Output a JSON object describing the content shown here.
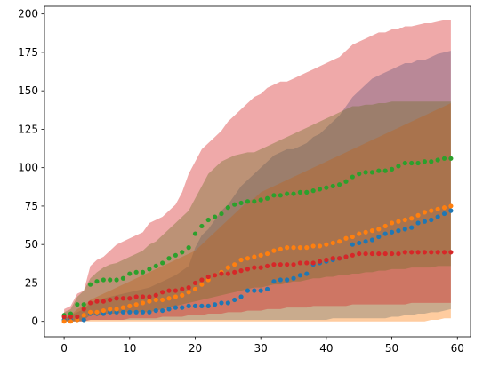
{
  "chart_data": {
    "type": "scatter",
    "title": "",
    "xlabel": "",
    "ylabel": "",
    "xlim": [
      -3,
      62
    ],
    "ylim": [
      -10,
      205
    ],
    "xticks": [
      0,
      10,
      20,
      30,
      40,
      50,
      60
    ],
    "yticks": [
      0,
      25,
      50,
      75,
      100,
      125,
      150,
      175,
      200
    ],
    "x": [
      0,
      1,
      2,
      3,
      4,
      5,
      6,
      7,
      8,
      9,
      10,
      11,
      12,
      13,
      14,
      15,
      16,
      17,
      18,
      19,
      20,
      21,
      22,
      23,
      24,
      25,
      26,
      27,
      28,
      29,
      30,
      31,
      32,
      33,
      34,
      35,
      36,
      37,
      38,
      39,
      40,
      41,
      42,
      43,
      44,
      45,
      46,
      47,
      48,
      49,
      50,
      51,
      52,
      53,
      54,
      55,
      56,
      57,
      58,
      59
    ],
    "grid": false,
    "legend": "none",
    "series": [
      {
        "color": "#1f77b4",
        "values": [
          1,
          1,
          1,
          1,
          5,
          5,
          5,
          6,
          6,
          6,
          6,
          6,
          6,
          6,
          7,
          7,
          8,
          9,
          9,
          10,
          10,
          10,
          10,
          11,
          12,
          12,
          14,
          16,
          20,
          20,
          20,
          21,
          26,
          27,
          27,
          28,
          30,
          31,
          37,
          38,
          39,
          40,
          41,
          42,
          50,
          51,
          52,
          53,
          55,
          57,
          58,
          59,
          60,
          61,
          64,
          65,
          66,
          68,
          70,
          72
        ],
        "band_low": [
          0,
          0,
          0,
          0,
          1,
          1,
          1,
          1,
          1,
          1,
          1,
          1,
          1,
          1,
          1,
          1,
          1,
          1,
          1,
          1,
          1,
          1,
          1,
          1,
          1,
          1,
          1,
          1,
          1,
          1,
          1,
          1,
          1,
          1,
          1,
          1,
          1,
          1,
          1,
          1,
          1,
          2,
          2,
          2,
          2,
          2,
          2,
          2,
          2,
          2,
          3,
          3,
          4,
          4,
          5,
          5,
          6,
          6,
          7,
          8
        ],
        "band_high": [
          2,
          4,
          6,
          8,
          12,
          14,
          15,
          16,
          17,
          18,
          19,
          20,
          21,
          22,
          24,
          26,
          28,
          30,
          33,
          36,
          48,
          56,
          60,
          66,
          72,
          76,
          82,
          88,
          92,
          96,
          100,
          104,
          108,
          110,
          112,
          112,
          114,
          116,
          120,
          122,
          126,
          130,
          134,
          140,
          146,
          150,
          154,
          158,
          160,
          162,
          164,
          166,
          168,
          168,
          170,
          170,
          172,
          174,
          175,
          176
        ]
      },
      {
        "color": "#ff7f0e",
        "values": [
          0,
          0,
          1,
          4,
          6,
          6,
          7,
          8,
          8,
          9,
          10,
          11,
          12,
          13,
          14,
          14,
          15,
          16,
          17,
          19,
          21,
          24,
          27,
          30,
          32,
          35,
          37,
          40,
          41,
          42,
          43,
          44,
          46,
          47,
          48,
          48,
          48,
          48,
          49,
          49,
          50,
          51,
          52,
          54,
          55,
          57,
          58,
          59,
          60,
          62,
          64,
          65,
          66,
          67,
          69,
          71,
          72,
          73,
          74,
          75
        ],
        "band_low": [
          0,
          0,
          0,
          0,
          0,
          0,
          0,
          0,
          0,
          0,
          0,
          0,
          0,
          0,
          0,
          0,
          0,
          0,
          0,
          0,
          0,
          0,
          0,
          0,
          0,
          0,
          0,
          0,
          0,
          0,
          0,
          0,
          0,
          0,
          0,
          0,
          0,
          0,
          0,
          0,
          0,
          0,
          0,
          0,
          0,
          0,
          0,
          0,
          0,
          0,
          0,
          0,
          0,
          0,
          0,
          0,
          1,
          1,
          2,
          2
        ],
        "band_high": [
          2,
          4,
          8,
          10,
          14,
          16,
          18,
          20,
          22,
          24,
          26,
          28,
          30,
          32,
          34,
          36,
          38,
          40,
          42,
          44,
          46,
          50,
          54,
          58,
          62,
          66,
          70,
          74,
          78,
          80,
          84,
          86,
          88,
          90,
          92,
          94,
          96,
          98,
          100,
          102,
          104,
          106,
          108,
          110,
          112,
          114,
          116,
          118,
          120,
          122,
          124,
          126,
          128,
          130,
          132,
          134,
          136,
          138,
          140,
          142
        ]
      },
      {
        "color": "#2ca02c",
        "values": [
          4,
          5,
          11,
          11,
          24,
          26,
          27,
          27,
          27,
          28,
          31,
          32,
          32,
          34,
          36,
          38,
          41,
          43,
          45,
          48,
          57,
          62,
          66,
          68,
          70,
          74,
          76,
          77,
          78,
          78,
          79,
          80,
          82,
          82,
          83,
          83,
          84,
          84,
          85,
          86,
          87,
          88,
          89,
          91,
          94,
          96,
          97,
          97,
          98,
          98,
          99,
          101,
          103,
          103,
          103,
          104,
          104,
          105,
          106,
          106
        ],
        "band_low": [
          0,
          0,
          0,
          1,
          4,
          4,
          5,
          5,
          5,
          6,
          6,
          6,
          6,
          6,
          7,
          8,
          9,
          10,
          11,
          12,
          13,
          14,
          15,
          16,
          17,
          18,
          19,
          20,
          21,
          22,
          22,
          23,
          24,
          24,
          25,
          26,
          26,
          27,
          28,
          28,
          29,
          29,
          30,
          30,
          31,
          31,
          32,
          32,
          33,
          33,
          34,
          34,
          34,
          35,
          35,
          35,
          35,
          36,
          36,
          36
        ],
        "band_high": [
          6,
          8,
          16,
          20,
          28,
          32,
          35,
          37,
          38,
          40,
          42,
          44,
          46,
          50,
          52,
          56,
          60,
          64,
          68,
          72,
          80,
          88,
          96,
          100,
          104,
          106,
          108,
          109,
          110,
          110,
          112,
          114,
          116,
          118,
          120,
          122,
          124,
          126,
          128,
          130,
          132,
          134,
          136,
          138,
          140,
          140,
          141,
          141,
          142,
          142,
          143,
          143,
          143,
          143,
          143,
          143,
          143,
          143,
          143,
          143
        ]
      },
      {
        "color": "#d62728",
        "values": [
          3,
          3,
          3,
          8,
          12,
          13,
          13,
          14,
          15,
          15,
          15,
          16,
          16,
          16,
          17,
          19,
          20,
          20,
          21,
          22,
          25,
          27,
          29,
          30,
          31,
          31,
          32,
          33,
          34,
          35,
          35,
          36,
          37,
          37,
          37,
          37,
          38,
          38,
          38,
          39,
          40,
          41,
          41,
          42,
          43,
          44,
          44,
          44,
          44,
          44,
          44,
          44,
          45,
          45,
          45,
          45,
          45,
          45,
          45,
          45
        ],
        "band_low": [
          0,
          0,
          0,
          0,
          1,
          1,
          1,
          1,
          1,
          1,
          2,
          2,
          2,
          2,
          2,
          3,
          3,
          3,
          3,
          4,
          4,
          4,
          5,
          5,
          5,
          6,
          6,
          6,
          7,
          7,
          7,
          8,
          8,
          8,
          9,
          9,
          9,
          9,
          10,
          10,
          10,
          10,
          10,
          10,
          11,
          11,
          11,
          11,
          11,
          11,
          11,
          11,
          11,
          12,
          12,
          12,
          12,
          12,
          12,
          12
        ],
        "band_high": [
          8,
          10,
          18,
          20,
          36,
          40,
          42,
          46,
          50,
          52,
          54,
          56,
          58,
          64,
          66,
          68,
          72,
          76,
          84,
          96,
          104,
          112,
          116,
          120,
          124,
          130,
          134,
          138,
          142,
          146,
          148,
          152,
          154,
          156,
          156,
          158,
          160,
          162,
          164,
          166,
          168,
          170,
          172,
          176,
          180,
          182,
          184,
          186,
          188,
          188,
          190,
          190,
          192,
          192,
          193,
          194,
          194,
          195,
          196,
          196
        ]
      }
    ]
  }
}
